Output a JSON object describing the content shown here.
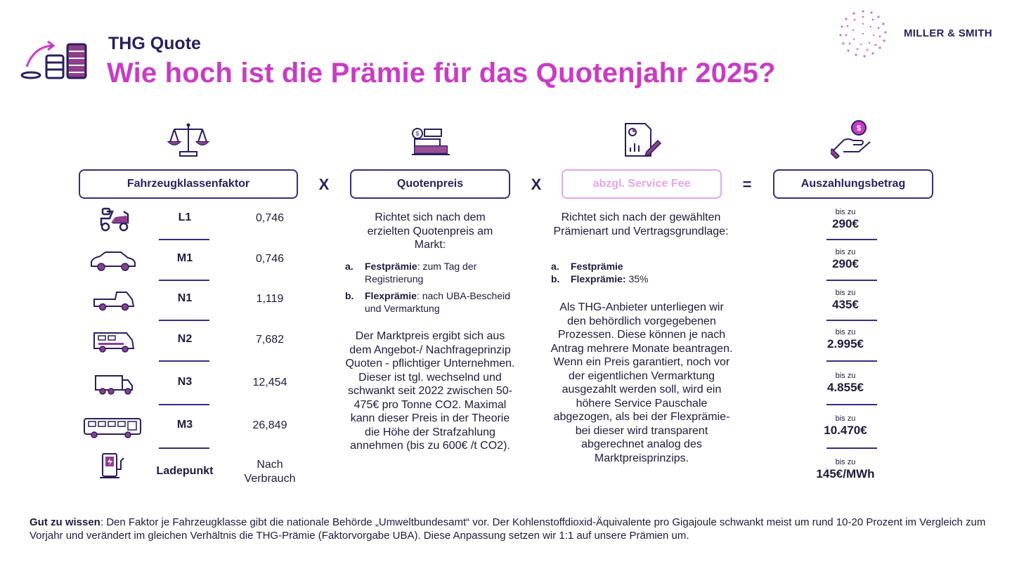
{
  "header": {
    "subtitle": "THG Quote",
    "title": "Wie hoch ist die Prämie für das Quotenjahr 2025?",
    "brand": "MILLER & SMITH"
  },
  "colors": {
    "primary": "#2a1f5c",
    "accent": "#c93cc4",
    "border": "#3b2c7a",
    "light_accent": "#e3a7e6"
  },
  "boxes": {
    "factor": "Fahrzeugklassenfaktor",
    "price": "Quotenpreis",
    "fee": "abzgl. Service Fee",
    "payout": "Auszahlungsbetrag"
  },
  "operators": {
    "op1": "X",
    "op2": "X",
    "op3": "="
  },
  "icons": {
    "logo": "coins-stack-icon",
    "factor": "scales-icon",
    "price": "price-bars-icon",
    "fee": "document-chart-icon",
    "payout": "hand-coin-icon"
  },
  "vehicles": [
    {
      "icon": "moped-icon",
      "class": "L1",
      "factor": "0,746"
    },
    {
      "icon": "car-icon",
      "class": "M1",
      "factor": "0,746"
    },
    {
      "icon": "pickup-icon",
      "class": "N1",
      "factor": "1,119"
    },
    {
      "icon": "van-icon",
      "class": "N2",
      "factor": "7,682"
    },
    {
      "icon": "truck-icon",
      "class": "N3",
      "factor": "12,454"
    },
    {
      "icon": "bus-icon",
      "class": "M3",
      "factor": "26,849"
    },
    {
      "icon": "charger-icon",
      "class": "Ladepunkt",
      "factor": "Nach Verbrauch"
    }
  ],
  "price": {
    "intro": "Richtet sich nach dem erzielten Quotenpreis am Markt:",
    "items": [
      {
        "marker": "a.",
        "term": "Festprämie",
        "text": ": zum Tag der Registrierung"
      },
      {
        "marker": "b.",
        "term": "Flexprämie",
        "text": ": nach UBA-Bescheid und Vermarktung"
      }
    ],
    "body": "Der Marktpreis ergibt sich aus dem Angebot-/ Nachfrageprinzip Quoten - pflichtiger Unternehmen. Dieser ist tgl. wechselnd und schwankt seit 2022 zwischen 50-475€ pro Tonne CO2. Maximal kann dieser Preis in der Theorie die Höhe der Strafzahlung annehmen (bis zu 600€ /t CO2)."
  },
  "fee": {
    "intro": "Richtet sich nach der gewählten Prämienart und Vertragsgrundlage:",
    "items": [
      {
        "marker": "a.",
        "term": "Festprämie",
        "text": ""
      },
      {
        "marker": "b.",
        "term": "Flexprämie:",
        "text": " 35%"
      }
    ],
    "body": "Als THG-Anbieter unterliegen wir den behördlich vorgegebenen Prozessen. Diese können je nach Antrag mehrere Monate beantragen. Wenn ein Preis garantiert, noch vor der eigentlichen Vermarktung ausgezahlt werden soll, wird ein höhere Service Pauschale abgezogen, als bei der Flexprämie-bei dieser wird transparent abgerechnet analog des Marktpreisprinzips."
  },
  "payouts": [
    {
      "prefix": "bis zu",
      "amount": "290€"
    },
    {
      "prefix": "bis zu",
      "amount": "290€"
    },
    {
      "prefix": "bis zu",
      "amount": "435€"
    },
    {
      "prefix": "bis zu",
      "amount": "2.995€"
    },
    {
      "prefix": "bis zu",
      "amount": "4.855€"
    },
    {
      "prefix": "bis zu",
      "amount": "10.470€"
    },
    {
      "prefix": "bis zu",
      "amount": "145€/MWh"
    }
  ],
  "footer": {
    "label": "Gut zu wissen",
    "text": ": Den Faktor je Fahrzeugklasse gibt die nationale Behörde „Umweltbundesamt“ vor. Der Kohlenstoffdioxid-Äquivalente pro Gigajoule schwankt meist um rund 10-20 Prozent im Vergleich zum Vorjahr und verändert im gleichen Verhältnis die THG-Prämie (Faktorvorgabe UBA). Diese Anpassung setzen wir 1:1 auf unsere Prämien um."
  }
}
